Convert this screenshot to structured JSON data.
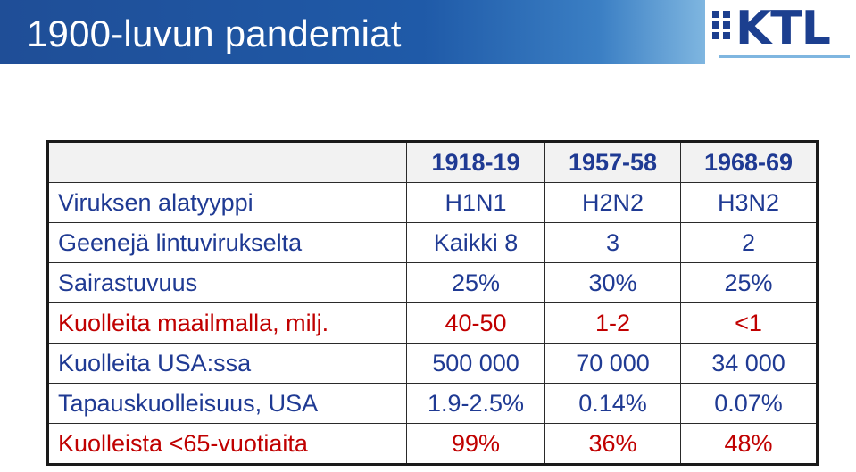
{
  "slide": {
    "title": "1900-luvun pandemiat",
    "logo_text": "KTL"
  },
  "colors": {
    "title_bar": "#1f5aa8",
    "text_blue": "#1f3a93",
    "text_red": "#c00000",
    "header_bg": "#f2f2f2"
  },
  "table": {
    "headers": [
      "",
      "1918-19",
      "1957-58",
      "1968-69"
    ],
    "rows": [
      {
        "label": "Viruksen alatyyppi",
        "values": [
          "H1N1",
          "H2N2",
          "H3N2"
        ],
        "highlight": false
      },
      {
        "label": "Geenejä lintuvirukselta",
        "values": [
          "Kaikki 8",
          "3",
          "2"
        ],
        "highlight": false
      },
      {
        "label": "Sairastuvuus",
        "values": [
          "25%",
          "30%",
          "25%"
        ],
        "highlight": false
      },
      {
        "label": "Kuolleita maailmalla, milj.",
        "values": [
          "40-50",
          "1-2",
          "<1"
        ],
        "highlight": true
      },
      {
        "label": "Kuolleita USA:ssa",
        "values": [
          "500 000",
          "70 000",
          "34 000"
        ],
        "highlight": false
      },
      {
        "label": "Tapauskuolleisuus, USA",
        "values": [
          "1.9-2.5%",
          "0.14%",
          "0.07%"
        ],
        "highlight": false
      },
      {
        "label": "Kuolleista <65-vuotiaita",
        "values": [
          "99%",
          "36%",
          "48%"
        ],
        "highlight": true
      }
    ]
  }
}
